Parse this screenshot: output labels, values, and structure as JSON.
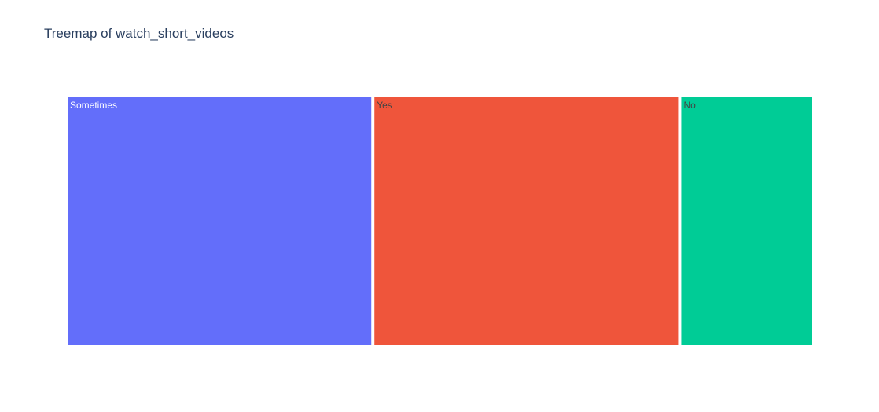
{
  "chart_data": {
    "type": "treemap",
    "title": "Treemap of watch_short_videos",
    "categories": [
      "Sometimes",
      "Yes",
      "No"
    ],
    "values": [
      41,
      41,
      17.5
    ],
    "colors": [
      "#636efa",
      "#ef553b",
      "#00cc96"
    ],
    "label_colors": [
      "#ffffff",
      "#444444",
      "#444444"
    ]
  }
}
